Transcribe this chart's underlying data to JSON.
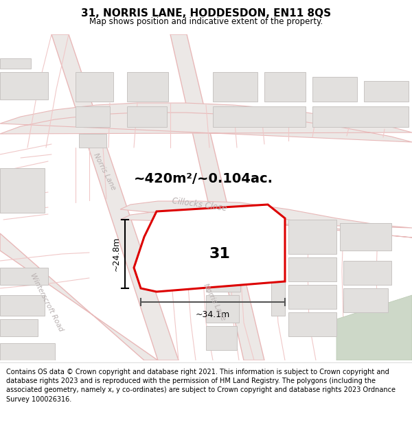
{
  "title": "31, NORRIS LANE, HODDESDON, EN11 8QS",
  "subtitle": "Map shows position and indicative extent of the property.",
  "area_text": "~420m²/~0.104ac.",
  "property_number": "31",
  "dim_width": "~34.1m",
  "dim_height": "~24.8m",
  "footer_text": "Contains OS data © Crown copyright and database right 2021. This information is subject to Crown copyright and database rights 2023 and is reproduced with the permission of HM Land Registry. The polygons (including the associated geometry, namely x, y co-ordinates) are subject to Crown copyright and database rights 2023 Ordnance Survey 100026316.",
  "map_bg": "#f5f4f2",
  "road_line_color": "#e8b8b8",
  "road_line_thin": "#f0c8c8",
  "building_fill": "#e2e0de",
  "building_edge": "#c8c4c2",
  "property_fill": "#ffffff",
  "property_edge": "#dd0000",
  "dim_color": "#333333",
  "street_label_color": "#b8b0b0",
  "green_area_color": "#cdd8c8",
  "title_fontsize": 11,
  "subtitle_fontsize": 8.5,
  "footer_fontsize": 7.0
}
